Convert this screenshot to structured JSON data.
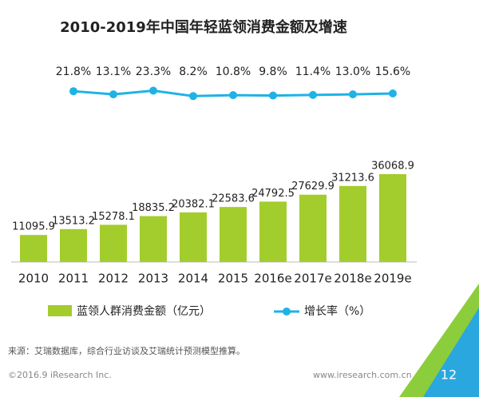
{
  "chart_data": {
    "type": "bar",
    "title": "2010-2019年中国年轻蓝领消费金额及增速",
    "categories": [
      "2010",
      "2011",
      "2012",
      "2013",
      "2014",
      "2015",
      "2016e",
      "2017e",
      "2018e",
      "2019e"
    ],
    "series": [
      {
        "name": "蓝领人群消费金额（亿元）",
        "type": "bar",
        "color": "#a3cd2c",
        "values": [
          11095.9,
          13513.2,
          15278.1,
          18835.2,
          20382.1,
          22583.6,
          24792.5,
          27629.9,
          31213.6,
          36068.9
        ]
      },
      {
        "name": "增长率（%）",
        "type": "line",
        "color": "#1fb2e6",
        "values": [
          null,
          21.8,
          13.1,
          23.3,
          8.2,
          10.8,
          9.8,
          11.4,
          13.0,
          15.6
        ],
        "value_labels": [
          null,
          "21.8%",
          "13.1%",
          "23.3%",
          "8.2%",
          "10.8%",
          "9.8%",
          "11.4%",
          "13.0%",
          "15.6%"
        ]
      }
    ]
  },
  "footer": {
    "source": "来源：艾瑞数据库，综合行业访谈及艾瑞统计预测模型推算。",
    "copyright": "©2016.9 iResearch Inc.",
    "url": "www.iresearch.com.cn",
    "page": "12"
  }
}
